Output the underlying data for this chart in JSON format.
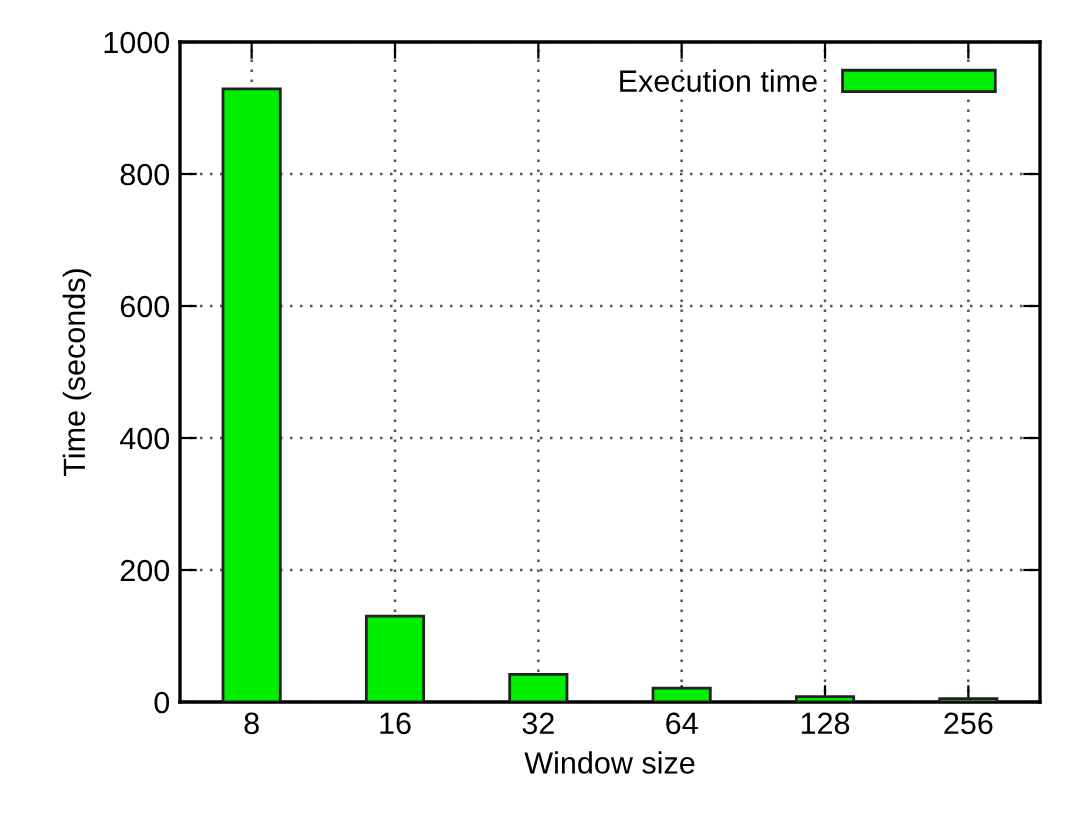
{
  "chart_data": {
    "type": "bar",
    "xlabel": "Window size",
    "ylabel": "Time (seconds)",
    "categories": [
      "8",
      "16",
      "32",
      "64",
      "128",
      "256"
    ],
    "series": [
      {
        "name": "Execution time",
        "color": "#00ee00",
        "values": [
          929,
          130,
          42,
          21,
          8,
          5
        ]
      }
    ],
    "ylim": [
      0,
      1000
    ],
    "yticks": [
      0,
      200,
      400,
      600,
      800,
      1000
    ],
    "grid": true,
    "legend": "top right"
  }
}
